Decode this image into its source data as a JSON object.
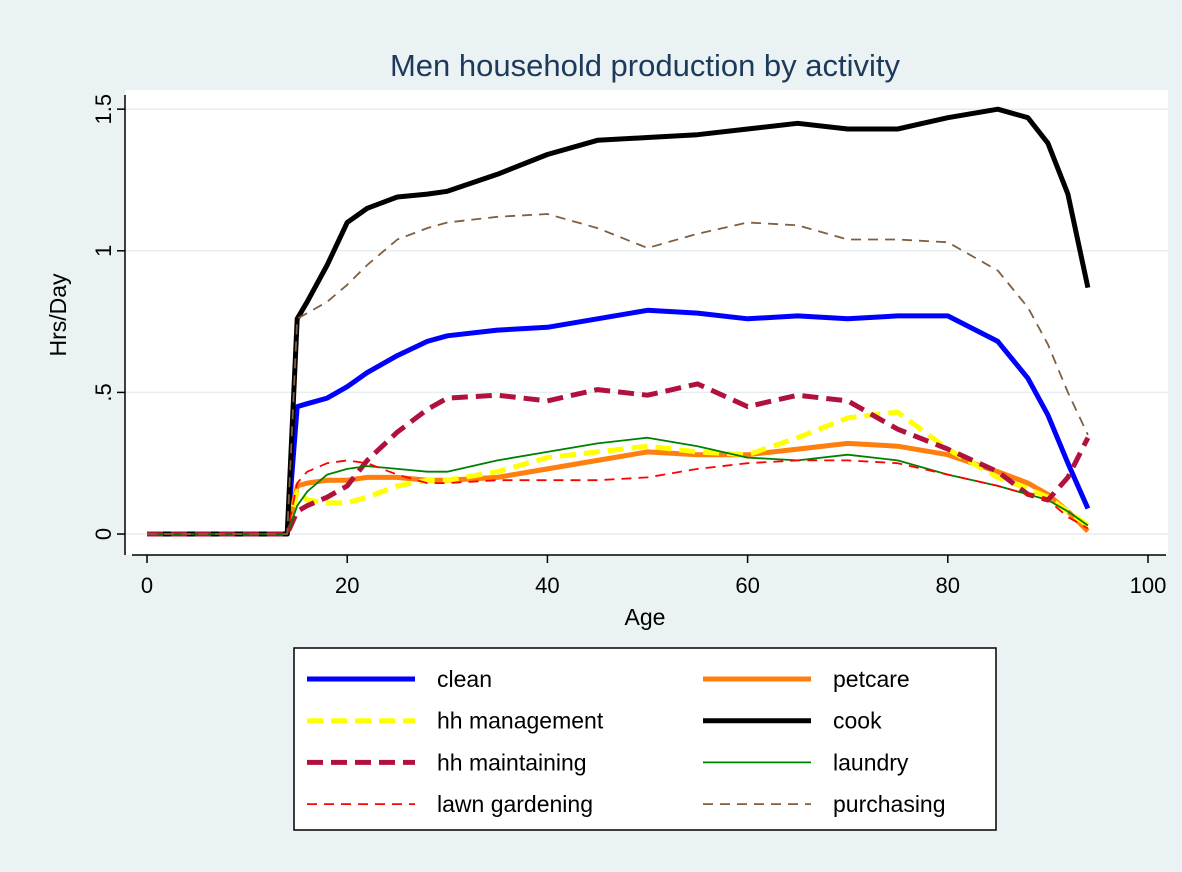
{
  "chart_data": {
    "type": "line",
    "title": "Men household production by activity",
    "xlabel": "Age",
    "ylabel": "Hrs/Day",
    "x": [
      0,
      14,
      15,
      16,
      18,
      20,
      22,
      25,
      28,
      30,
      35,
      40,
      45,
      50,
      55,
      60,
      65,
      70,
      75,
      80,
      85,
      88,
      90,
      92,
      94
    ],
    "xlim": [
      -2.2,
      102
    ],
    "ylim": [
      -0.074,
      1.55
    ],
    "xticks": [
      0,
      20,
      40,
      60,
      80,
      100
    ],
    "yticks": [
      0,
      {
        "value": 0.5,
        "label": ".5"
      },
      1,
      1.5
    ],
    "grid": true,
    "legend": "bottom",
    "series": [
      {
        "name": "clean",
        "color": "#0000ff",
        "line_style": "solid",
        "line_weight": "thick",
        "values": [
          0,
          0,
          0.45,
          0.46,
          0.48,
          0.52,
          0.57,
          0.63,
          0.68,
          0.7,
          0.72,
          0.73,
          0.76,
          0.79,
          0.78,
          0.76,
          0.77,
          0.76,
          0.77,
          0.77,
          0.68,
          0.55,
          0.42,
          0.25,
          0.09
        ]
      },
      {
        "name": "petcare",
        "color": "#ff7f0e",
        "line_style": "solid",
        "line_weight": "thick",
        "values": [
          0,
          0,
          0.17,
          0.18,
          0.19,
          0.19,
          0.2,
          0.2,
          0.19,
          0.19,
          0.2,
          0.23,
          0.26,
          0.29,
          0.28,
          0.28,
          0.3,
          0.32,
          0.31,
          0.28,
          0.22,
          0.18,
          0.14,
          0.08,
          0.01
        ]
      },
      {
        "name": "hh management",
        "color": "#ffff00",
        "line_style": "dashed",
        "line_weight": "thick",
        "values": [
          0,
          0,
          0.15,
          0.12,
          0.11,
          0.11,
          0.13,
          0.17,
          0.19,
          0.19,
          0.22,
          0.27,
          0.29,
          0.31,
          0.29,
          0.28,
          0.34,
          0.41,
          0.43,
          0.3,
          0.2,
          0.16,
          0.13,
          0.08,
          0.03
        ]
      },
      {
        "name": "cook",
        "color": "#000000",
        "line_style": "solid",
        "line_weight": "thick",
        "values": [
          0,
          0,
          0.76,
          0.82,
          0.95,
          1.1,
          1.15,
          1.19,
          1.2,
          1.21,
          1.27,
          1.34,
          1.39,
          1.4,
          1.41,
          1.43,
          1.45,
          1.43,
          1.43,
          1.47,
          1.5,
          1.47,
          1.38,
          1.2,
          0.87
        ]
      },
      {
        "name": "hh maintaining",
        "color": "#b0123d",
        "line_style": "dashed",
        "line_weight": "thick",
        "values": [
          0,
          0,
          0.08,
          0.1,
          0.13,
          0.17,
          0.26,
          0.36,
          0.44,
          0.48,
          0.49,
          0.47,
          0.51,
          0.49,
          0.53,
          0.45,
          0.49,
          0.47,
          0.37,
          0.3,
          0.22,
          0.14,
          0.12,
          0.2,
          0.34
        ]
      },
      {
        "name": "laundry",
        "color": "#008000",
        "line_style": "solid",
        "line_weight": "thin",
        "values": [
          0,
          0,
          0.1,
          0.15,
          0.21,
          0.23,
          0.24,
          0.23,
          0.22,
          0.22,
          0.26,
          0.29,
          0.32,
          0.34,
          0.31,
          0.27,
          0.26,
          0.28,
          0.26,
          0.21,
          0.17,
          0.14,
          0.12,
          0.08,
          0.03
        ]
      },
      {
        "name": "lawn gardening",
        "color": "#ff0000",
        "line_style": "dashed",
        "line_weight": "thin",
        "values": [
          0,
          0,
          0.18,
          0.22,
          0.25,
          0.26,
          0.25,
          0.21,
          0.18,
          0.18,
          0.19,
          0.19,
          0.19,
          0.2,
          0.23,
          0.25,
          0.26,
          0.26,
          0.25,
          0.21,
          0.17,
          0.14,
          0.12,
          0.06,
          0.02
        ]
      },
      {
        "name": "purchasing",
        "color": "#7f5f3f",
        "line_style": "dashed",
        "line_weight": "thin",
        "values": [
          0,
          0,
          0.76,
          0.78,
          0.82,
          0.88,
          0.95,
          1.04,
          1.08,
          1.1,
          1.12,
          1.13,
          1.08,
          1.01,
          1.06,
          1.1,
          1.09,
          1.04,
          1.04,
          1.03,
          0.93,
          0.8,
          0.67,
          0.5,
          0.35
        ]
      }
    ]
  }
}
